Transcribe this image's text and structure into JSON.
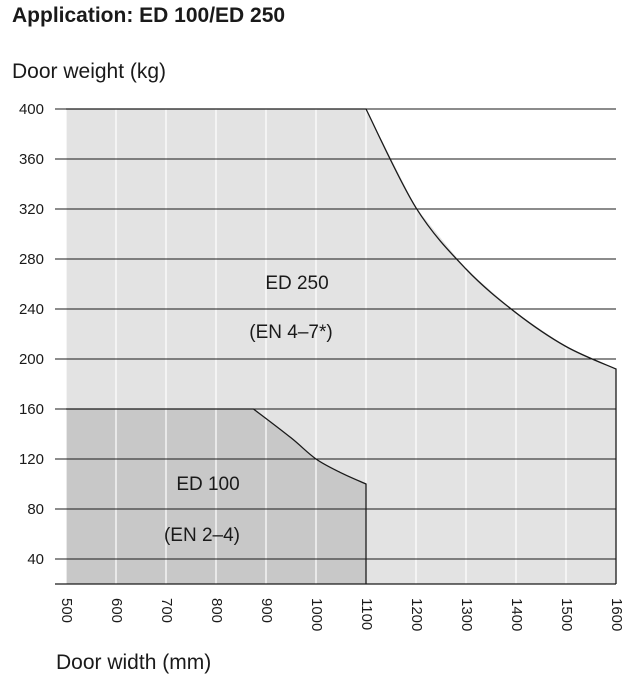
{
  "chart_data": {
    "type": "area",
    "title": "Application: ED 100/ED 250",
    "ylabel": "Door weight (kg)",
    "xlabel": "Door width (mm)",
    "xlim": [
      500,
      1600
    ],
    "ylim": [
      20,
      400
    ],
    "x_ticks": [
      500,
      600,
      700,
      800,
      900,
      1000,
      1100,
      1200,
      1300,
      1400,
      1500,
      1600
    ],
    "y_ticks": [
      40,
      80,
      120,
      160,
      200,
      240,
      280,
      320,
      360,
      400
    ],
    "series": [
      {
        "name": "ED 250",
        "label": "ED 250",
        "sublabel": "(EN 4–7*)",
        "color": "#e3e3e3",
        "boundary": [
          [
            500,
            400
          ],
          [
            1100,
            400
          ],
          [
            1200,
            321
          ],
          [
            1300,
            272
          ],
          [
            1400,
            237
          ],
          [
            1500,
            210
          ],
          [
            1600,
            192
          ],
          [
            1600,
            20
          ]
        ]
      },
      {
        "name": "ED 100",
        "label": "ED 100",
        "sublabel": "(EN 2–4)",
        "color": "#c8c8c8",
        "boundary": [
          [
            500,
            160
          ],
          [
            875,
            160
          ],
          [
            950,
            137
          ],
          [
            1000,
            120
          ],
          [
            1050,
            109
          ],
          [
            1100,
            100
          ],
          [
            1100,
            20
          ]
        ]
      }
    ]
  }
}
